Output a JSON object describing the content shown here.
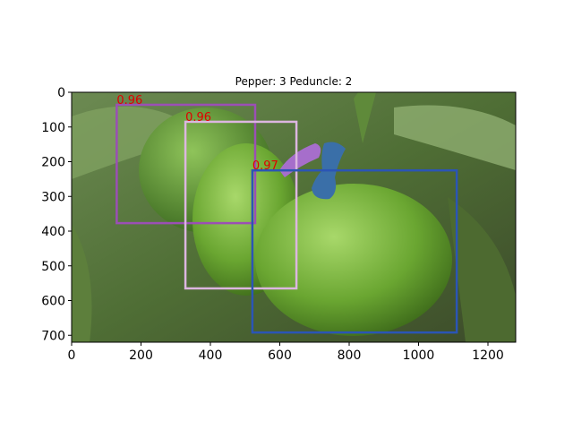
{
  "chart_data": {
    "type": "image",
    "title": "Pepper: 3 Peduncle: 2",
    "xlim": [
      0,
      1280
    ],
    "ylim": [
      720,
      0
    ],
    "xticks": [
      0,
      200,
      400,
      600,
      800,
      1000,
      1200
    ],
    "yticks": [
      0,
      100,
      200,
      300,
      400,
      500,
      600,
      700
    ],
    "boxes": [
      {
        "label": "0.96",
        "color": "#9b4fb5",
        "x": [
          130,
          529
        ],
        "y": [
          36,
          377
        ]
      },
      {
        "label": "0.96",
        "color": "#dcb6e0",
        "x": [
          328,
          648
        ],
        "y": [
          85,
          565
        ]
      },
      {
        "label": "0.97",
        "color": "#2b55b5",
        "x": [
          521,
          1110
        ],
        "y": [
          225,
          692
        ]
      }
    ]
  }
}
